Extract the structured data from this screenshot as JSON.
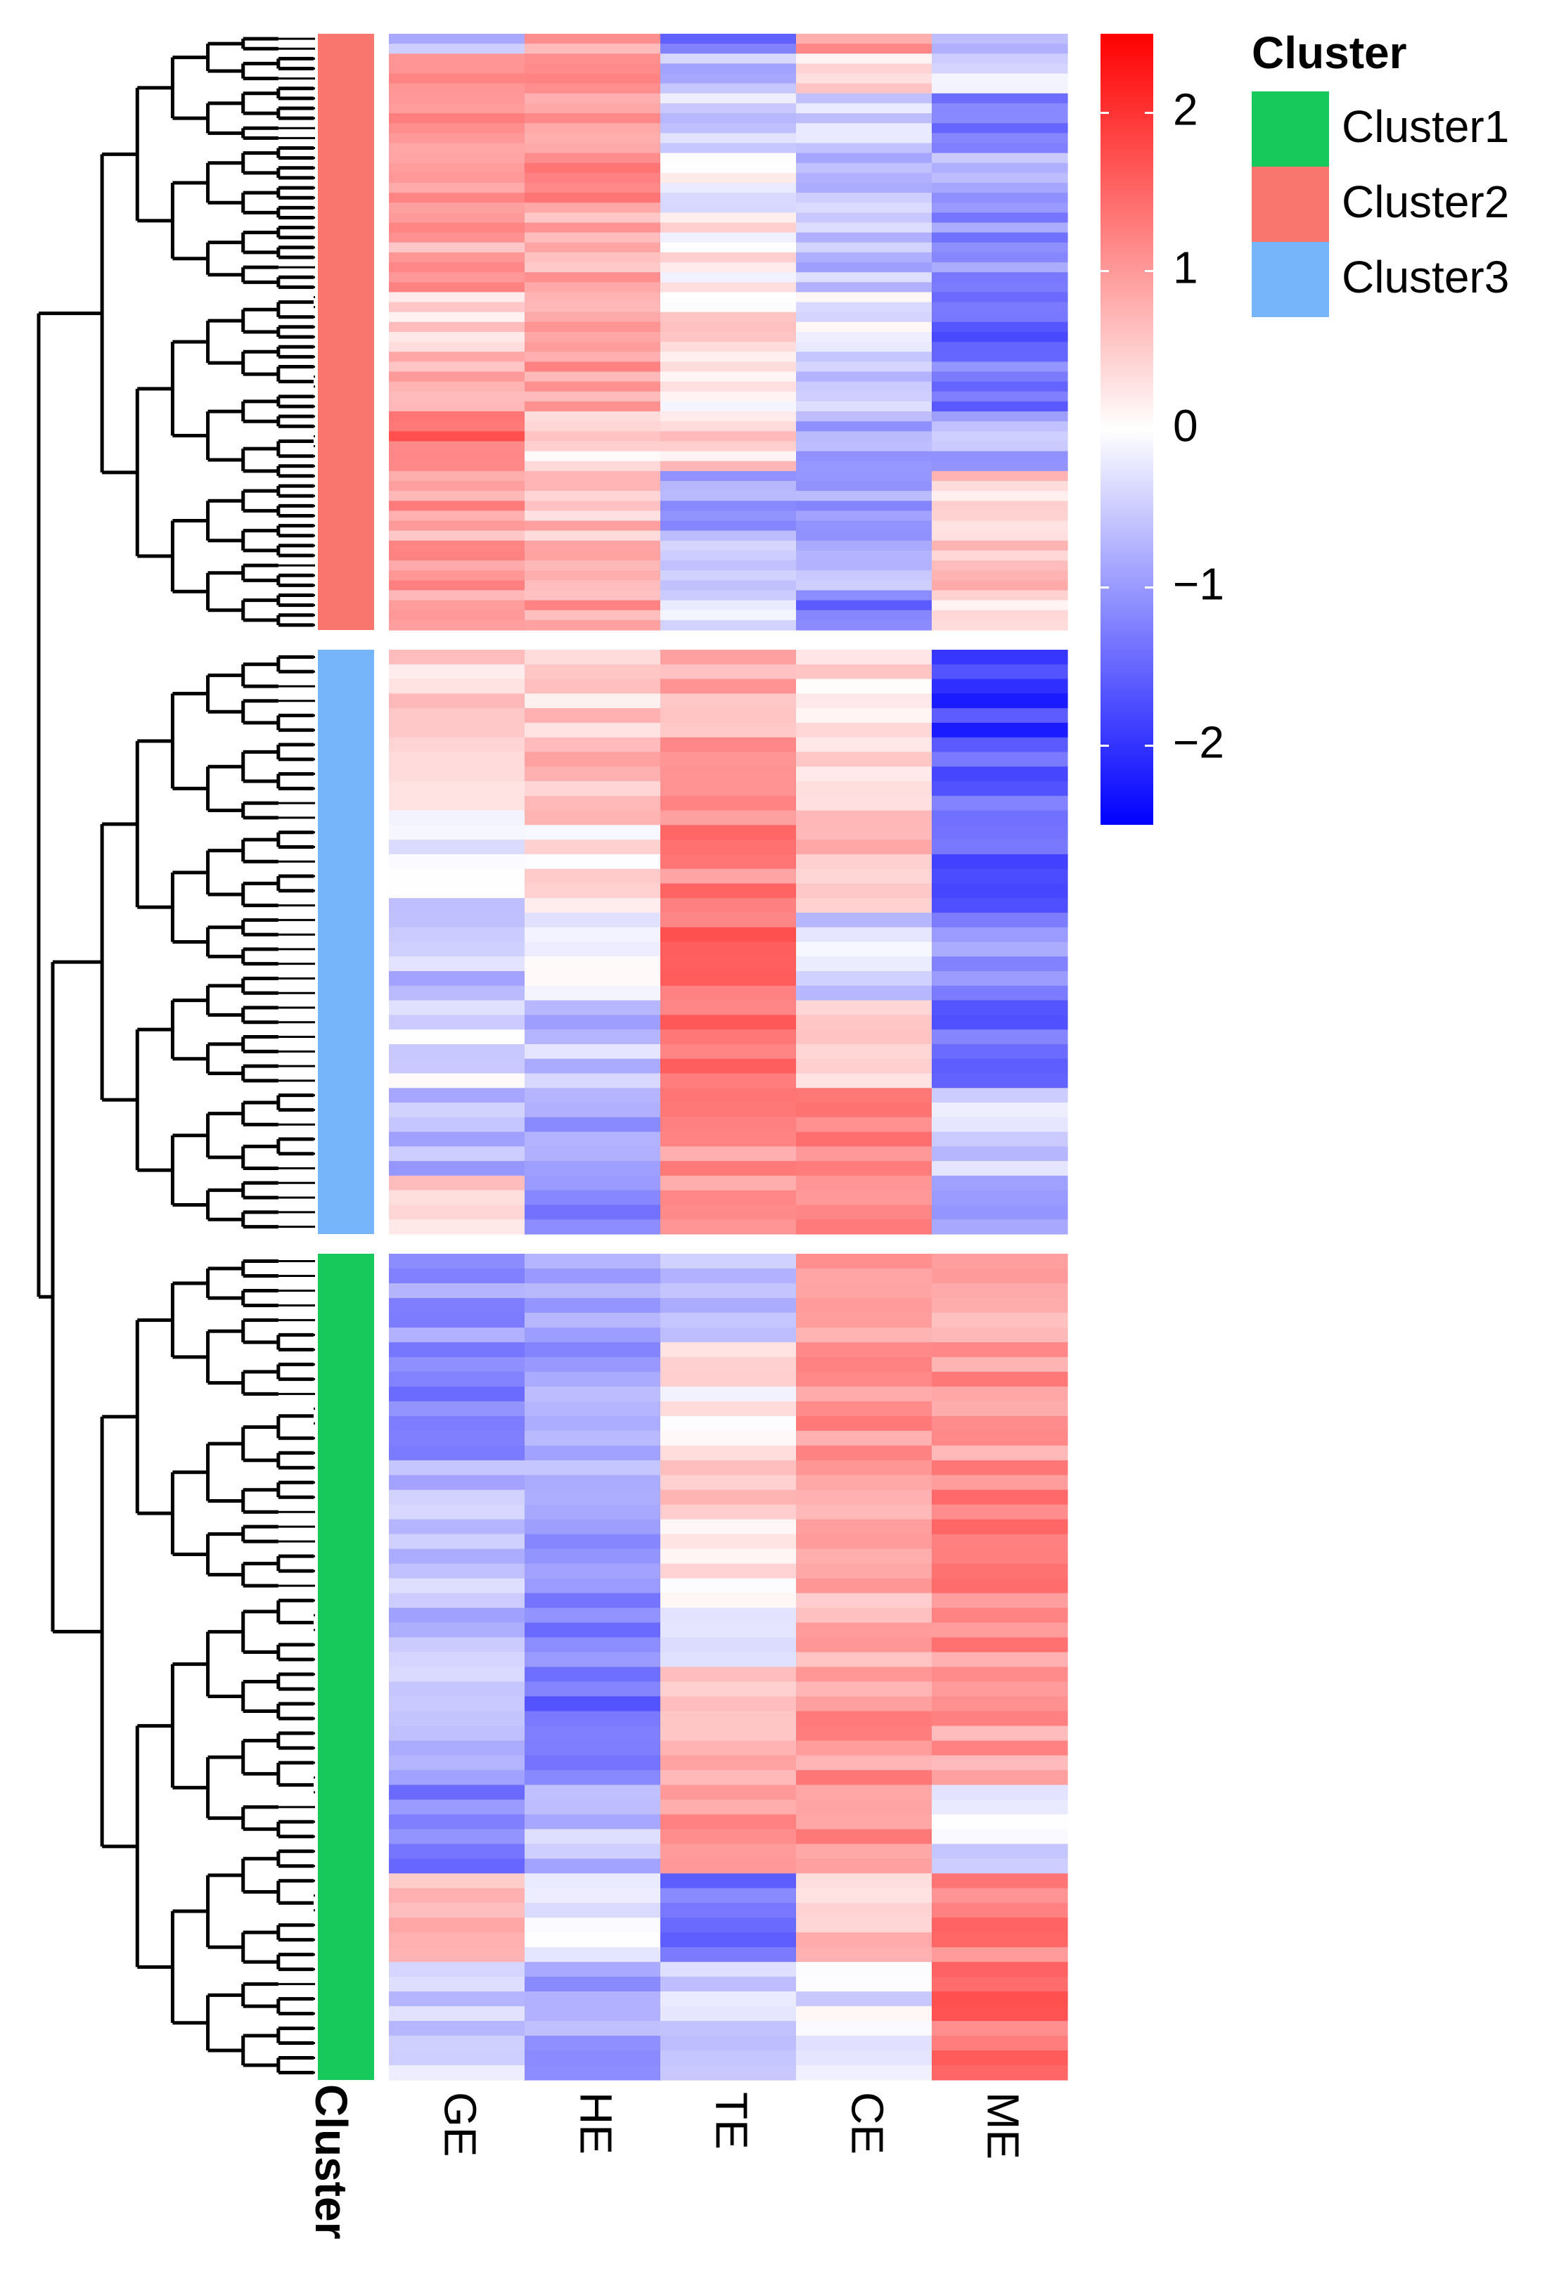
{
  "chart_data": {
    "type": "heatmap",
    "title": "",
    "columns": [
      "GE",
      "HE",
      "TE",
      "CE",
      "ME"
    ],
    "annotation_label": "Cluster",
    "row_dendrogram": true,
    "color_scale": {
      "min": -2.5,
      "max": 2.5,
      "low_color": "#0000ff",
      "mid_color": "#ffffff",
      "high_color": "#ff0000",
      "ticks": [
        2,
        1,
        0,
        -1,
        -2
      ],
      "tick_labels": [
        "2",
        "1",
        "0",
        "−1",
        "−2"
      ]
    },
    "legend": {
      "title": "Cluster",
      "position": "top-right",
      "entries": [
        {
          "label": "Cluster1",
          "color": "#17c95b"
        },
        {
          "label": "Cluster2",
          "color": "#f8766d"
        },
        {
          "label": "Cluster3",
          "color": "#77b5fb"
        }
      ]
    },
    "row_groups": [
      {
        "cluster": "Cluster2",
        "color": "#f8766d",
        "blocks": [
          {
            "rows": 2,
            "values": [
              -0.5,
              0.8,
              -1.4,
              1.0,
              -0.8
            ]
          },
          {
            "rows": 4,
            "values": [
              0.9,
              1.0,
              -0.6,
              0.3,
              -0.4
            ]
          },
          {
            "rows": 6,
            "values": [
              1.1,
              0.9,
              -0.4,
              -0.5,
              -1.2
            ]
          },
          {
            "rows": 6,
            "values": [
              1.0,
              1.1,
              -0.1,
              -0.7,
              -0.8
            ]
          },
          {
            "rows": 8,
            "values": [
              0.9,
              0.8,
              0.2,
              -0.6,
              -1.1
            ]
          },
          {
            "rows": 6,
            "values": [
              0.4,
              0.7,
              0.3,
              -0.1,
              -1.6
            ]
          },
          {
            "rows": 6,
            "values": [
              0.7,
              0.9,
              0.0,
              -0.5,
              -1.3
            ]
          },
          {
            "rows": 6,
            "values": [
              1.5,
              0.3,
              0.4,
              -0.8,
              -0.8
            ]
          },
          {
            "rows": 6,
            "values": [
              1.0,
              0.6,
              -0.9,
              -1.0,
              0.4
            ]
          },
          {
            "rows": 6,
            "values": [
              0.9,
              0.7,
              -0.6,
              -0.8,
              0.5
            ]
          },
          {
            "rows": 4,
            "values": [
              0.8,
              0.9,
              -0.4,
              -1.4,
              0.3
            ]
          }
        ]
      },
      {
        "cluster": "Cluster3",
        "color": "#77b5fb",
        "blocks": [
          {
            "rows": 6,
            "values": [
              0.4,
              0.5,
              0.8,
              0.3,
              -1.9
            ]
          },
          {
            "rows": 6,
            "values": [
              0.2,
              0.6,
              1.0,
              0.5,
              -1.5
            ]
          },
          {
            "rows": 6,
            "values": [
              -0.3,
              0.2,
              1.2,
              0.7,
              -1.6
            ]
          },
          {
            "rows": 6,
            "values": [
              -0.6,
              -0.1,
              1.5,
              -0.4,
              -1.0
            ]
          },
          {
            "rows": 6,
            "values": [
              -0.2,
              -0.6,
              1.4,
              0.3,
              -1.4
            ]
          },
          {
            "rows": 6,
            "values": [
              -0.7,
              -1.0,
              1.1,
              1.2,
              -0.5
            ]
          },
          {
            "rows": 4,
            "values": [
              0.4,
              -1.2,
              1.0,
              1.0,
              -0.9
            ]
          }
        ]
      },
      {
        "cluster": "Cluster1",
        "color": "#17c95b",
        "blocks": [
          {
            "rows": 6,
            "values": [
              -1.0,
              -0.8,
              -0.5,
              1.0,
              0.9
            ]
          },
          {
            "rows": 8,
            "values": [
              -1.3,
              -1.0,
              0.2,
              1.1,
              1.0
            ]
          },
          {
            "rows": 8,
            "values": [
              -0.7,
              -0.9,
              0.4,
              0.9,
              1.3
            ]
          },
          {
            "rows": 6,
            "values": [
              -0.6,
              -1.3,
              0.0,
              0.8,
              1.1
            ]
          },
          {
            "rows": 8,
            "values": [
              -0.7,
              -1.4,
              0.8,
              1.0,
              0.9
            ]
          },
          {
            "rows": 6,
            "values": [
              -1.2,
              -0.6,
              1.0,
              1.2,
              -0.3
            ]
          },
          {
            "rows": 6,
            "values": [
              0.6,
              -0.3,
              -1.4,
              0.5,
              1.2
            ]
          },
          {
            "rows": 8,
            "values": [
              -0.4,
              -0.8,
              -0.5,
              -0.2,
              1.4
            ]
          }
        ]
      }
    ]
  }
}
